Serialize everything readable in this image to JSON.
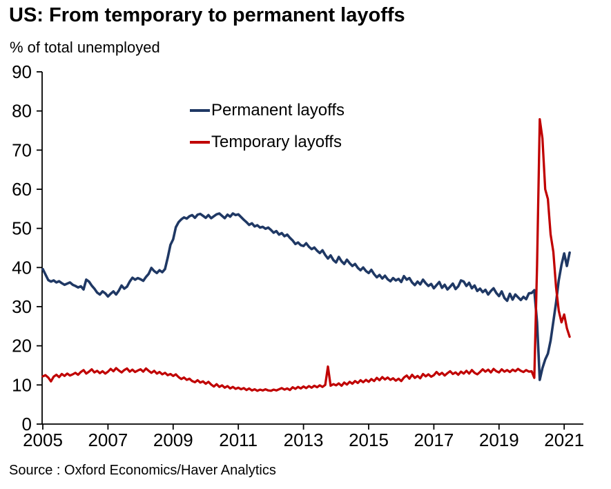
{
  "header": {
    "title": "US: From temporary to permanent layoffs",
    "subtitle": "% of total unemployed"
  },
  "footer": {
    "source": "Source : Oxford Economics/Haver Analytics"
  },
  "chart_data": {
    "type": "line",
    "title": "US: From temporary to permanent layoffs",
    "ylabel": "% of total unemployed",
    "xlabel": "",
    "x_start_year": 2005,
    "points_per_year": 12,
    "x_ticks": [
      2005,
      2007,
      2009,
      2011,
      2013,
      2015,
      2017,
      2019,
      2021
    ],
    "y_ticks": [
      0,
      10,
      20,
      30,
      40,
      50,
      60,
      70,
      80,
      90
    ],
    "ylim": [
      0,
      90
    ],
    "xlim": [
      2005,
      2021.6
    ],
    "grid": false,
    "legend_position": "upper-center-left",
    "axis_color": "#000000",
    "series": [
      {
        "name": "Permanent layoffs",
        "color": "#1f3864",
        "values": [
          39.6,
          38.2,
          36.8,
          36.4,
          36.7,
          36.2,
          36.5,
          36.0,
          35.6,
          35.9,
          36.2,
          35.6,
          35.3,
          34.9,
          35.2,
          34.4,
          36.9,
          36.4,
          35.4,
          34.6,
          33.6,
          33.1,
          33.9,
          33.4,
          32.6,
          33.3,
          33.9,
          33.1,
          34.1,
          35.4,
          34.6,
          35.1,
          36.4,
          37.4,
          36.9,
          37.3,
          37.0,
          36.6,
          37.6,
          38.4,
          39.9,
          39.1,
          38.6,
          39.3,
          38.8,
          39.6,
          42.5,
          45.8,
          47.2,
          50.3,
          51.6,
          52.3,
          52.8,
          52.5,
          53.1,
          53.4,
          52.7,
          53.5,
          53.7,
          53.2,
          52.7,
          53.4,
          52.6,
          53.1,
          53.6,
          53.8,
          53.2,
          52.6,
          53.5,
          53.0,
          53.8,
          53.4,
          53.6,
          52.9,
          52.2,
          51.6,
          50.9,
          51.3,
          50.5,
          50.8,
          50.2,
          50.4,
          49.9,
          50.2,
          49.6,
          48.9,
          49.3,
          48.4,
          48.8,
          48.0,
          48.4,
          47.6,
          46.9,
          46.0,
          46.4,
          45.7,
          45.5,
          46.2,
          45.3,
          44.7,
          45.1,
          44.3,
          43.7,
          44.4,
          43.2,
          42.3,
          43.1,
          41.9,
          41.3,
          42.7,
          41.6,
          40.9,
          42.0,
          41.1,
          40.4,
          40.9,
          39.9,
          39.3,
          40.0,
          39.1,
          38.6,
          39.4,
          38.3,
          37.5,
          38.1,
          37.2,
          37.9,
          37.0,
          36.5,
          37.3,
          36.7,
          37.1,
          36.3,
          37.8,
          36.9,
          37.3,
          36.2,
          35.5,
          36.4,
          35.7,
          36.9,
          36.0,
          35.3,
          35.8,
          34.7,
          35.5,
          36.3,
          34.8,
          35.6,
          34.4,
          35.1,
          35.9,
          34.5,
          35.2,
          36.7,
          36.4,
          35.3,
          36.1,
          34.7,
          35.4,
          34.0,
          34.6,
          33.7,
          34.3,
          33.1,
          34.0,
          34.7,
          33.5,
          32.7,
          33.9,
          32.2,
          31.5,
          33.3,
          31.8,
          33.1,
          32.4,
          31.7,
          32.5,
          31.9,
          33.4,
          33.5,
          34.2,
          26.0,
          11.3,
          14.3,
          16.5,
          18.0,
          21.3,
          26.2,
          31.0,
          36.7,
          40.7,
          43.6,
          40.4,
          43.8
        ]
      },
      {
        "name": "Temporary layoffs",
        "color": "#c00000",
        "values": [
          12.2,
          12.5,
          11.9,
          10.9,
          12.1,
          12.6,
          12.0,
          12.8,
          12.3,
          12.9,
          12.4,
          12.7,
          13.1,
          12.6,
          13.3,
          13.8,
          12.9,
          13.4,
          14.0,
          13.2,
          13.6,
          13.0,
          13.5,
          12.9,
          13.4,
          14.1,
          13.5,
          14.3,
          13.7,
          13.2,
          13.8,
          14.2,
          13.4,
          13.9,
          13.3,
          13.7,
          14.0,
          13.4,
          14.2,
          13.6,
          13.1,
          13.6,
          12.9,
          13.3,
          12.7,
          13.1,
          12.5,
          12.8,
          12.3,
          12.7,
          12.0,
          11.5,
          11.9,
          11.3,
          11.6,
          11.0,
          10.7,
          11.2,
          10.6,
          10.9,
          10.3,
          10.8,
          10.1,
          9.6,
          10.2,
          9.5,
          9.9,
          9.3,
          9.7,
          9.1,
          9.5,
          9.0,
          9.3,
          8.9,
          9.2,
          8.7,
          9.1,
          8.6,
          8.9,
          8.5,
          8.8,
          8.6,
          8.9,
          8.6,
          8.5,
          8.8,
          8.6,
          8.9,
          9.2,
          8.8,
          9.1,
          8.7,
          9.4,
          9.0,
          9.5,
          9.1,
          9.6,
          9.2,
          9.7,
          9.3,
          9.8,
          9.4,
          9.9,
          9.5,
          10.0,
          14.7,
          9.8,
          10.2,
          9.9,
          10.4,
          9.8,
          10.6,
          10.1,
          10.8,
          10.3,
          11.0,
          10.5,
          11.2,
          10.7,
          11.3,
          10.8,
          11.5,
          11.0,
          11.8,
          11.2,
          12.0,
          11.4,
          11.9,
          11.3,
          11.7,
          11.1,
          11.6,
          11.0,
          11.9,
          12.4,
          11.6,
          12.6,
          11.8,
          12.3,
          11.7,
          12.8,
          12.2,
          12.7,
          12.1,
          12.5,
          13.3,
          12.6,
          13.1,
          12.4,
          13.0,
          13.5,
          12.8,
          13.2,
          12.6,
          13.4,
          12.9,
          13.6,
          12.9,
          13.8,
          13.1,
          12.7,
          13.3,
          14.0,
          13.4,
          13.9,
          13.2,
          14.1,
          13.5,
          13.2,
          14.0,
          13.4,
          13.8,
          13.3,
          13.9,
          13.5,
          14.1,
          13.6,
          13.3,
          13.8,
          13.4,
          13.5,
          11.8,
          40.5,
          77.9,
          73.0,
          60.0,
          57.5,
          48.5,
          44.0,
          35.0,
          29.0,
          26.0,
          28.0,
          24.5,
          22.3
        ]
      }
    ],
    "source": "Source : Oxford Economics/Haver Analytics"
  }
}
